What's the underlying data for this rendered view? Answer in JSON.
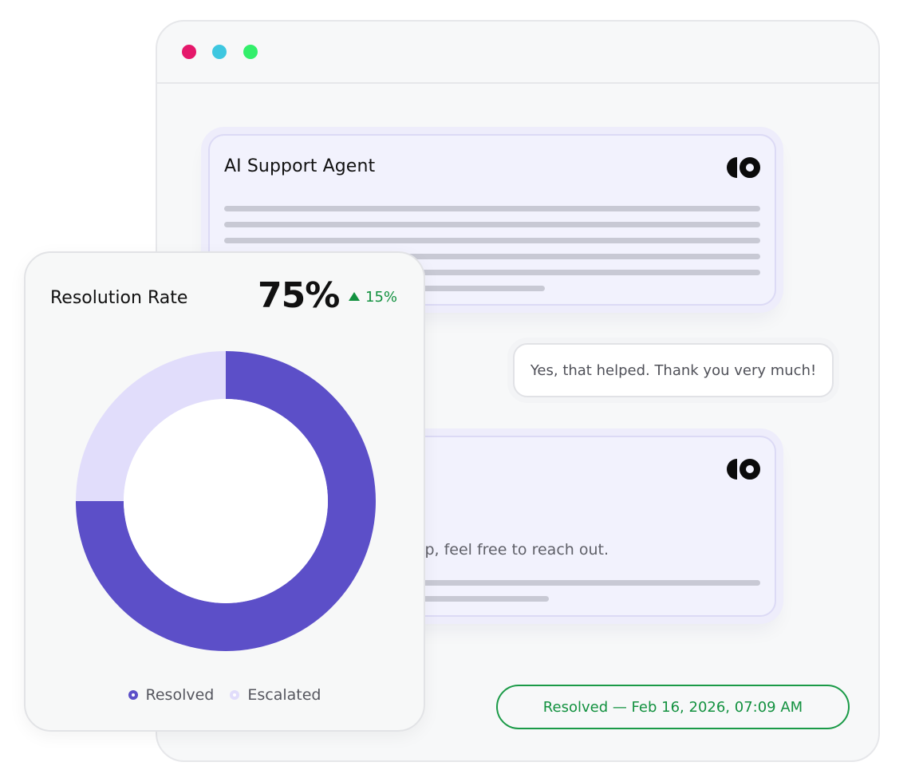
{
  "colors": {
    "window_dots": [
      "#e5186b",
      "#3ec7e0",
      "#33ef6b"
    ],
    "accent": "#5c4fc8",
    "accent_light": "#e1ddfb",
    "success": "#12913f"
  },
  "conversation": {
    "agent_name": "AI Support Agent",
    "brand_icon": "agent-brand-logo-icon",
    "user_message": "Yes, that helped. Thank you very much!",
    "agent_reply_visible": "up, feel free to reach out."
  },
  "status": {
    "label": "Resolved — Feb 16, 2026, 07:09 AM"
  },
  "metric": {
    "title": "Resolution Rate",
    "value": "75%",
    "change": "15%",
    "change_direction": "up"
  },
  "chart_data": {
    "type": "pie",
    "donut": true,
    "categories": [
      "Resolved",
      "Escalated"
    ],
    "values": [
      75,
      25
    ],
    "colors": [
      "#5c4fc8",
      "#e1ddfb"
    ],
    "legend_position": "bottom"
  }
}
